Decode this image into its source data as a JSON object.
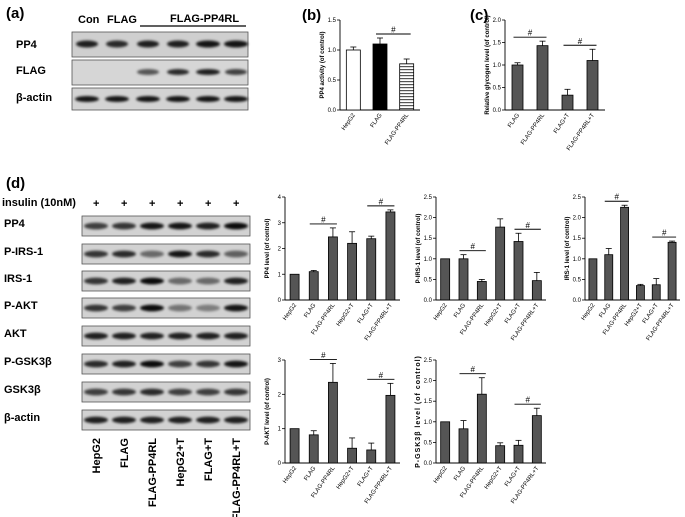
{
  "panels": {
    "a": "(a)",
    "b": "(b)",
    "c": "(c)",
    "d": "(d)"
  },
  "blot_a": {
    "lane_labels": [
      "Con",
      "FLAG"
    ],
    "group_label": "FLAG-PP4RL",
    "rows": [
      "PP4",
      "FLAG",
      "β-actin"
    ]
  },
  "blot_d": {
    "treatment_label": "insulin (10nM)",
    "plus_marks": [
      "+",
      "+",
      "+",
      "+",
      "+",
      "+"
    ],
    "rows": [
      "PP4",
      "P-IRS-1",
      "IRS-1",
      "P-AKT",
      "AKT",
      "P-GSK3β",
      "GSK3β",
      "β-actin"
    ],
    "lanes": [
      "HepG2",
      "FLAG",
      "FLAG-PP4RL",
      "HepG2+T",
      "FLAG+T",
      "FLAG-PP4RL+T"
    ]
  },
  "significance_mark": "#",
  "chart_data": [
    {
      "id": "b",
      "type": "bar",
      "categories": [
        "HepG2",
        "FLAG",
        "FLAG-PP4RL"
      ],
      "values": [
        1.0,
        1.1,
        0.77
      ],
      "errors": [
        0.05,
        0.1,
        0.08
      ],
      "fills": [
        "white",
        "black",
        "striped"
      ],
      "ylabel": "PP4 activity (of control)",
      "ylim": [
        0,
        1.5
      ],
      "yticks": [
        "0.0",
        "0.5",
        "1.0",
        "1.5"
      ],
      "sig": [
        [
          1,
          2
        ]
      ]
    },
    {
      "id": "c",
      "type": "bar",
      "categories": [
        "FLAG",
        "FLAG-PP4RL",
        "FLAG+T",
        "FLAG-PP4RL+T"
      ],
      "values": [
        1.0,
        1.43,
        0.33,
        1.1
      ],
      "errors": [
        0.05,
        0.1,
        0.13,
        0.25
      ],
      "ylabel": "Relative glycogen level (of control)",
      "ylim": [
        0,
        2.0
      ],
      "yticks": [
        "0.0",
        "0.5",
        "1.0",
        "1.5",
        "2.0"
      ],
      "sig": [
        [
          0,
          1
        ],
        [
          2,
          3
        ]
      ]
    },
    {
      "id": "pp4",
      "type": "bar",
      "categories": [
        "HepG2",
        "FLAG",
        "FLAG-PP4RL",
        "HepG2+T",
        "FLAG+T",
        "FLAG-PP4RL+T"
      ],
      "values": [
        1.0,
        1.1,
        2.45,
        2.2,
        2.38,
        3.42
      ],
      "errors": [
        0.0,
        0.05,
        0.35,
        0.45,
        0.1,
        0.08
      ],
      "ylabel": "PP4 level (of control)",
      "ylim": [
        0,
        4
      ],
      "yticks": [
        "0",
        "1",
        "2",
        "3",
        "4"
      ],
      "sig": [
        [
          1,
          2
        ],
        [
          4,
          5
        ]
      ]
    },
    {
      "id": "pirs1",
      "type": "bar",
      "categories": [
        "HepG2",
        "FLAG",
        "FLAG-PP4RL",
        "HepG2+T",
        "FLAG+T",
        "FLAG-PP4RL+T"
      ],
      "values": [
        1.0,
        1.0,
        0.45,
        1.77,
        1.42,
        0.47
      ],
      "errors": [
        0.0,
        0.1,
        0.05,
        0.2,
        0.2,
        0.2
      ],
      "ylabel": "P-IRS-1 level (of control)",
      "ylim": [
        0,
        2.5
      ],
      "yticks": [
        "0.0",
        "0.5",
        "1.0",
        "1.5",
        "2.0",
        "2.5"
      ],
      "sig": [
        [
          1,
          2
        ],
        [
          4,
          5
        ]
      ]
    },
    {
      "id": "irs1",
      "type": "bar",
      "categories": [
        "HepG2",
        "FLAG",
        "FLAG-PP4RL",
        "HepG2+T",
        "FLAG+T",
        "FLAG-PP4RL+T"
      ],
      "values": [
        1.0,
        1.1,
        2.25,
        0.35,
        0.37,
        1.4
      ],
      "errors": [
        0.0,
        0.15,
        0.05,
        0.03,
        0.15,
        0.03
      ],
      "ylabel": "IRS-1 level (of control)",
      "ylim": [
        0,
        2.5
      ],
      "yticks": [
        "0.0",
        "0.5",
        "1.0",
        "1.5",
        "2.0",
        "2.5"
      ],
      "sig": [
        [
          1,
          2
        ],
        [
          4,
          5
        ]
      ]
    },
    {
      "id": "pakt",
      "type": "bar",
      "categories": [
        "HepG2",
        "FLAG",
        "FLAG-PP4RL",
        "HepG2+T",
        "FLAG+T",
        "FLAG-PP4RL+T"
      ],
      "values": [
        1.0,
        0.82,
        2.35,
        0.43,
        0.38,
        1.97
      ],
      "errors": [
        0.0,
        0.12,
        0.55,
        0.3,
        0.2,
        0.35
      ],
      "ylabel": "P-AKT level (of control)",
      "ylim": [
        0,
        3
      ],
      "yticks": [
        "0",
        "1",
        "2",
        "3"
      ],
      "sig": [
        [
          1,
          2
        ],
        [
          4,
          5
        ]
      ]
    },
    {
      "id": "pgsk",
      "type": "bar",
      "categories": [
        "HepG2",
        "FLAG",
        "FLAG-PP4RL",
        "HepG2+T",
        "FLAG+T",
        "FLAG-PP4RL+T"
      ],
      "values": [
        1.0,
        0.83,
        1.67,
        0.42,
        0.43,
        1.15
      ],
      "errors": [
        0.0,
        0.2,
        0.4,
        0.07,
        0.12,
        0.18
      ],
      "ylabel": "P-GSK3β level (of control)",
      "ylim": [
        0,
        2.5
      ],
      "yticks": [
        "0.0",
        "0.5",
        "1.0",
        "1.5",
        "2.0",
        "2.5"
      ],
      "sig": [
        [
          1,
          2
        ],
        [
          4,
          5
        ]
      ]
    }
  ]
}
